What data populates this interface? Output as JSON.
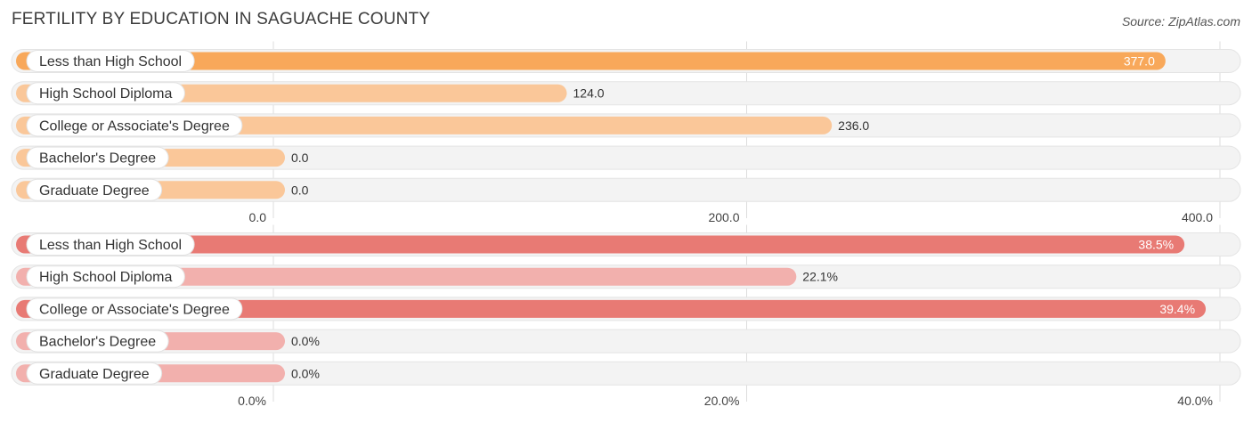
{
  "title": "FERTILITY BY EDUCATION IN SAGUACHE COUNTY",
  "source": "Source: ZipAtlas.com",
  "chart_data": [
    {
      "type": "bar",
      "orientation": "horizontal",
      "categories": [
        "Less than High School",
        "High School Diploma",
        "College or Associate's Degree",
        "Bachelor's Degree",
        "Graduate Degree"
      ],
      "values": [
        377.0,
        124.0,
        236.0,
        0.0,
        0.0
      ],
      "value_labels": [
        "377.0",
        "124.0",
        "236.0",
        "0.0",
        "0.0"
      ],
      "xlim": [
        0,
        400
      ],
      "ticks": [
        0,
        200,
        400
      ],
      "tick_labels": [
        "0.0",
        "200.0",
        "400.0"
      ],
      "colors": {
        "strong": "#f8a85a",
        "light": "#fac799"
      }
    },
    {
      "type": "bar",
      "orientation": "horizontal",
      "categories": [
        "Less than High School",
        "High School Diploma",
        "College or Associate's Degree",
        "Bachelor's Degree",
        "Graduate Degree"
      ],
      "values": [
        38.5,
        22.1,
        39.4,
        0.0,
        0.0
      ],
      "value_labels": [
        "38.5%",
        "22.1%",
        "39.4%",
        "0.0%",
        "0.0%"
      ],
      "xlim": [
        0,
        40
      ],
      "ticks": [
        0,
        20,
        40
      ],
      "tick_labels": [
        "0.0%",
        "20.0%",
        "40.0%"
      ],
      "colors": {
        "strong": "#e87a74",
        "light": "#f2b0ad"
      }
    }
  ]
}
